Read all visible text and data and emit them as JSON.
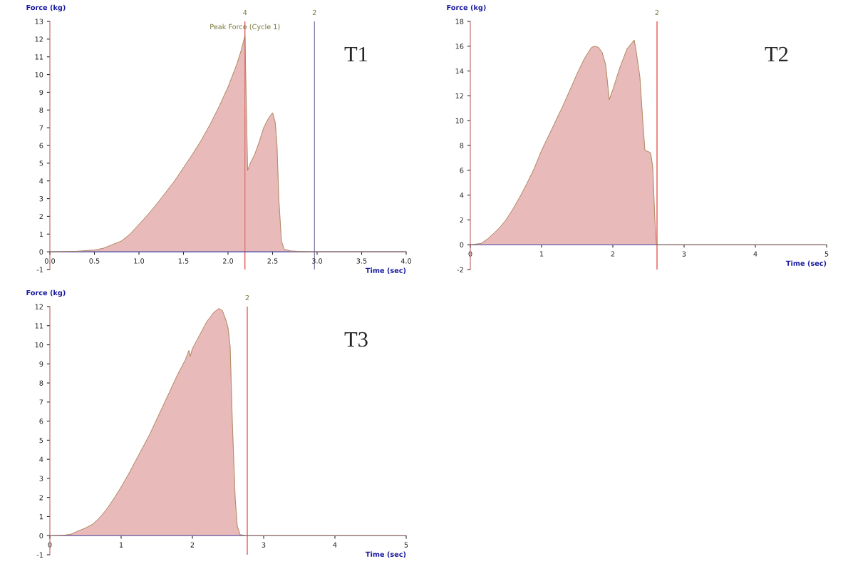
{
  "chart_data": [
    {
      "type": "area",
      "title": "T1",
      "xlabel": "Time (sec)",
      "ylabel": "Force (kg)",
      "x": [
        0,
        0.3,
        0.5,
        0.6,
        0.7,
        0.8,
        0.9,
        1.0,
        1.1,
        1.2,
        1.3,
        1.4,
        1.5,
        1.6,
        1.7,
        1.8,
        1.9,
        2.0,
        2.1,
        2.15,
        2.19,
        2.22,
        2.25,
        2.3,
        2.35,
        2.4,
        2.45,
        2.5,
        2.53,
        2.55,
        2.57,
        2.6,
        2.63,
        2.7,
        2.8,
        3.0,
        4.0
      ],
      "series": [
        {
          "color": "#d98c8c",
          "values": [
            0,
            0.03,
            0.1,
            0.2,
            0.4,
            0.6,
            1.0,
            1.55,
            2.1,
            2.7,
            3.35,
            4.0,
            4.75,
            5.5,
            6.3,
            7.2,
            8.2,
            9.3,
            10.6,
            11.4,
            12.2,
            4.6,
            5.0,
            5.5,
            6.2,
            7.0,
            7.5,
            7.85,
            7.3,
            6.0,
            3.0,
            0.6,
            0.15,
            0.05,
            0.02,
            0,
            0
          ]
        }
      ],
      "xlim": [
        0,
        4
      ],
      "ylim": [
        -1,
        13
      ],
      "xticks": [
        {
          "value": 0,
          "label": "0.0"
        },
        0.5,
        {
          "value": 1,
          "label": "1.0"
        },
        1.5,
        {
          "value": 2,
          "label": "2.0"
        },
        2.5,
        {
          "value": 3,
          "label": "3.0"
        },
        3.5,
        {
          "value": 4,
          "label": "4.0"
        }
      ],
      "yticks": [
        -1,
        0,
        1,
        2,
        3,
        4,
        5,
        6,
        7,
        8,
        9,
        10,
        11,
        12,
        13
      ],
      "ref_lines": [
        {
          "axis": "x",
          "value": 2.19,
          "color": "#e03030"
        },
        {
          "axis": "x",
          "value": 2.97,
          "color": "#6a6a9a"
        }
      ],
      "annotations": [
        {
          "text": "Peak Force (Cycle 1)",
          "x": 2.19,
          "y": 12.2
        },
        {
          "text": "4",
          "x": 2.19,
          "y": 13
        },
        {
          "text": "2",
          "x": 2.97,
          "y": 13
        }
      ],
      "grid": false,
      "legend": false
    },
    {
      "type": "area",
      "title": "T2",
      "xlabel": "Time (sec)",
      "ylabel": "Force (kg)",
      "x": [
        0,
        0.15,
        0.25,
        0.4,
        0.5,
        0.6,
        0.7,
        0.8,
        0.9,
        1.0,
        1.1,
        1.2,
        1.3,
        1.4,
        1.5,
        1.6,
        1.7,
        1.75,
        1.8,
        1.85,
        1.9,
        1.95,
        2.0,
        2.1,
        2.2,
        2.3,
        2.33,
        2.38,
        2.42,
        2.45,
        2.5,
        2.53,
        2.56,
        2.59,
        2.61,
        2.62,
        5
      ],
      "series": [
        {
          "color": "#d98c8c",
          "values": [
            0,
            0.1,
            0.5,
            1.3,
            2.0,
            2.9,
            3.9,
            5.0,
            6.2,
            7.6,
            8.8,
            10.0,
            11.2,
            12.5,
            13.8,
            15.0,
            15.9,
            16.0,
            15.9,
            15.5,
            14.5,
            11.7,
            12.5,
            14.3,
            15.8,
            16.5,
            15.5,
            13.5,
            10.0,
            7.6,
            7.5,
            7.4,
            6.3,
            2.0,
            0.1,
            0,
            0
          ]
        }
      ],
      "xlim": [
        0,
        5
      ],
      "ylim": [
        -2,
        18
      ],
      "xticks": [
        0,
        1,
        2,
        3,
        4,
        5
      ],
      "yticks": [
        -2,
        0,
        2,
        4,
        6,
        8,
        10,
        12,
        14,
        16,
        18
      ],
      "ref_lines": [
        {
          "axis": "x",
          "value": 2.62,
          "color": "#e03030"
        }
      ],
      "annotations": [
        {
          "text": "2",
          "x": 2.62,
          "y": 18
        }
      ],
      "grid": false,
      "legend": false
    },
    {
      "type": "area",
      "title": "T3",
      "xlabel": "Time (sec)",
      "ylabel": "Force (kg)",
      "x": [
        0,
        0.2,
        0.3,
        0.4,
        0.5,
        0.6,
        0.7,
        0.8,
        0.9,
        1.0,
        1.1,
        1.2,
        1.3,
        1.4,
        1.5,
        1.6,
        1.7,
        1.8,
        1.9,
        1.95,
        1.97,
        2.0,
        2.1,
        2.2,
        2.3,
        2.37,
        2.42,
        2.47,
        2.5,
        2.53,
        2.56,
        2.6,
        2.63,
        2.67,
        2.75,
        5
      ],
      "series": [
        {
          "color": "#d98c8c",
          "values": [
            0,
            0.02,
            0.08,
            0.25,
            0.4,
            0.6,
            0.95,
            1.4,
            1.95,
            2.55,
            3.2,
            3.9,
            4.6,
            5.3,
            6.1,
            6.9,
            7.7,
            8.5,
            9.2,
            9.7,
            9.4,
            9.8,
            10.5,
            11.2,
            11.7,
            11.9,
            11.8,
            11.3,
            10.9,
            9.9,
            6.0,
            2.0,
            0.5,
            0.05,
            0,
            0
          ]
        }
      ],
      "xlim": [
        0,
        5
      ],
      "ylim": [
        -1,
        12
      ],
      "xticks": [
        0,
        1,
        2,
        3,
        4,
        5
      ],
      "yticks": [
        -1,
        0,
        1,
        2,
        3,
        4,
        5,
        6,
        7,
        8,
        9,
        10,
        11,
        12
      ],
      "ref_lines": [
        {
          "axis": "x",
          "value": 2.77,
          "color": "#e03030"
        }
      ],
      "annotations": [
        {
          "text": "2",
          "x": 2.77,
          "y": 12
        }
      ],
      "grid": false,
      "legend": false
    }
  ]
}
